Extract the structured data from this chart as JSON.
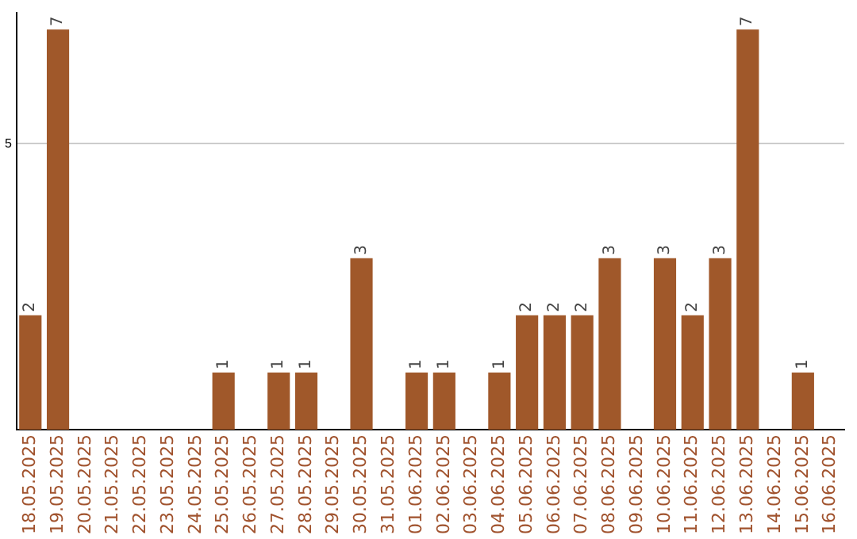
{
  "chart_data": {
    "type": "bar",
    "categories": [
      "18.05.2025",
      "19.05.2025",
      "20.05.2025",
      "21.05.2025",
      "22.05.2025",
      "23.05.2025",
      "24.05.2025",
      "25.05.2025",
      "26.05.2025",
      "27.05.2025",
      "28.05.2025",
      "29.05.2025",
      "30.05.2025",
      "31.05.2025",
      "01.06.2025",
      "02.06.2025",
      "03.06.2025",
      "04.06.2025",
      "05.06.2025",
      "06.06.2025",
      "07.06.2025",
      "08.06.2025",
      "09.06.2025",
      "10.06.2025",
      "11.06.2025",
      "12.06.2025",
      "13.06.2025",
      "14.06.2025",
      "15.06.2025",
      "16.06.2025"
    ],
    "values": [
      2,
      7,
      0,
      0,
      0,
      0,
      0,
      1,
      0,
      1,
      1,
      0,
      3,
      0,
      1,
      1,
      0,
      1,
      2,
      2,
      2,
      3,
      0,
      3,
      2,
      3,
      7,
      0,
      1,
      0
    ],
    "value_labels": [
      "2",
      "7",
      null,
      null,
      null,
      null,
      null,
      "1",
      null,
      "1",
      "1",
      null,
      "3",
      null,
      "1",
      "1",
      null,
      "1",
      "2",
      "2",
      "2",
      "3",
      null,
      "3",
      "2",
      "3",
      "7",
      null,
      "1",
      null
    ],
    "color": "#a0582a",
    "ylim": [
      0,
      7.3
    ],
    "yticks": [
      5
    ],
    "grid": "y",
    "legend": false
  }
}
